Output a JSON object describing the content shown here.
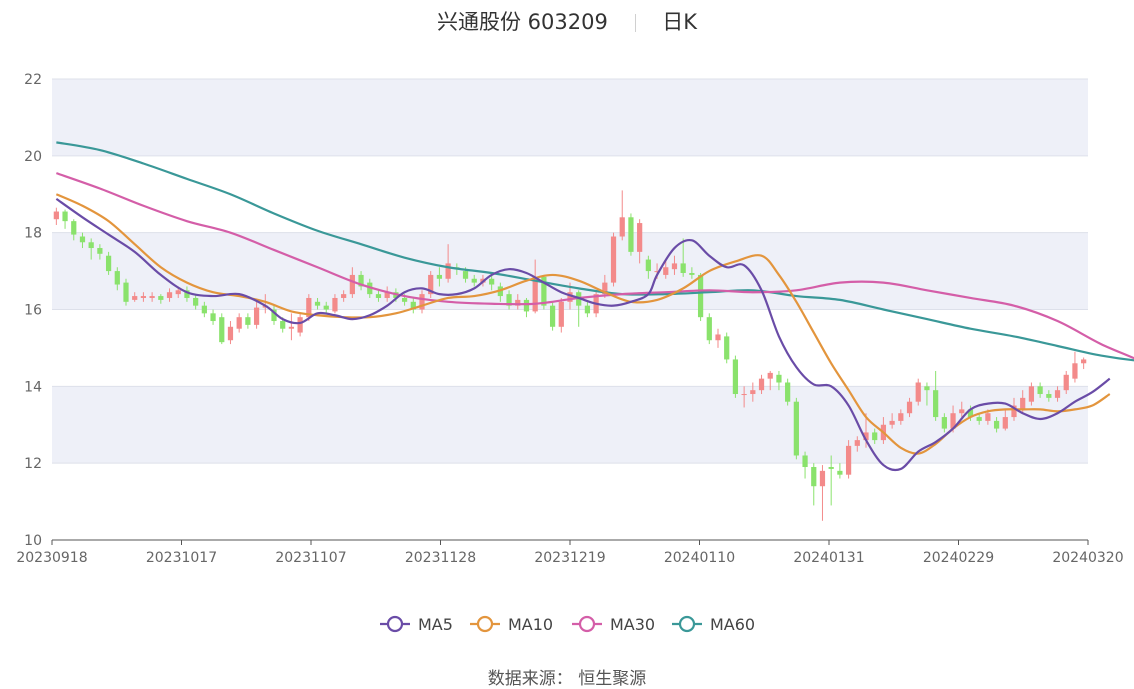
{
  "header": {
    "stock_name": "兴通股份 603209",
    "period": "日K"
  },
  "source": "数据来源： 恒生聚源",
  "colors": {
    "up": "#f38a8a",
    "down": "#8ae26c",
    "ma5": "#6a4ca7",
    "ma10": "#e3953d",
    "ma30": "#d45ea8",
    "ma60": "#3a9898",
    "band": "#eef0f8",
    "grid": "#dde0ea"
  },
  "chart_data": {
    "type": "candlestick",
    "title": "兴通股份 603209 日K",
    "ylim": [
      10,
      22
    ],
    "yticks": [
      10,
      12,
      14,
      16,
      18,
      20,
      22
    ],
    "xticks": [
      "20230918",
      "20231017",
      "20231107",
      "20231128",
      "20231219",
      "20240110",
      "20240131",
      "20240229",
      "20240320"
    ],
    "legend": [
      {
        "key": "ma5",
        "label": "MA5"
      },
      {
        "key": "ma10",
        "label": "MA10"
      },
      {
        "key": "ma30",
        "label": "MA30"
      },
      {
        "key": "ma60",
        "label": "MA60"
      }
    ],
    "candles": [
      [
        18.35,
        18.55,
        18.65,
        18.2
      ],
      [
        18.55,
        18.3,
        18.6,
        18.1
      ],
      [
        18.3,
        17.95,
        18.35,
        17.8
      ],
      [
        17.9,
        17.75,
        18.0,
        17.6
      ],
      [
        17.75,
        17.6,
        17.85,
        17.3
      ],
      [
        17.6,
        17.45,
        17.7,
        17.3
      ],
      [
        17.4,
        17.0,
        17.5,
        16.9
      ],
      [
        17.0,
        16.65,
        17.1,
        16.5
      ],
      [
        16.7,
        16.2,
        16.8,
        16.1
      ],
      [
        16.25,
        16.35,
        16.45,
        16.2
      ],
      [
        16.3,
        16.35,
        16.45,
        16.2
      ],
      [
        16.3,
        16.35,
        16.45,
        16.2
      ],
      [
        16.35,
        16.25,
        16.4,
        16.15
      ],
      [
        16.3,
        16.45,
        16.55,
        16.2
      ],
      [
        16.4,
        16.5,
        16.6,
        16.3
      ],
      [
        16.5,
        16.3,
        16.6,
        16.2
      ],
      [
        16.3,
        16.1,
        16.4,
        16.0
      ],
      [
        16.1,
        15.9,
        16.2,
        15.8
      ],
      [
        15.9,
        15.7,
        16.0,
        15.6
      ],
      [
        15.8,
        15.15,
        15.9,
        15.1
      ],
      [
        15.2,
        15.55,
        15.7,
        15.1
      ],
      [
        15.5,
        15.8,
        15.9,
        15.4
      ],
      [
        15.8,
        15.6,
        15.9,
        15.5
      ],
      [
        15.6,
        16.05,
        16.2,
        15.5
      ],
      [
        16.05,
        16.1,
        16.4,
        15.9
      ],
      [
        16.0,
        15.7,
        16.1,
        15.6
      ],
      [
        15.7,
        15.5,
        15.8,
        15.4
      ],
      [
        15.5,
        15.55,
        15.9,
        15.2
      ],
      [
        15.4,
        15.8,
        15.9,
        15.3
      ],
      [
        15.8,
        16.3,
        16.4,
        15.7
      ],
      [
        16.2,
        16.1,
        16.3,
        16.0
      ],
      [
        16.1,
        16.0,
        16.2,
        15.9
      ],
      [
        15.95,
        16.3,
        16.4,
        15.9
      ],
      [
        16.3,
        16.4,
        16.5,
        16.2
      ],
      [
        16.4,
        16.9,
        17.1,
        16.3
      ],
      [
        16.9,
        16.6,
        17.0,
        16.5
      ],
      [
        16.7,
        16.4,
        16.8,
        16.3
      ],
      [
        16.4,
        16.3,
        16.5,
        16.2
      ],
      [
        16.3,
        16.45,
        16.6,
        16.2
      ],
      [
        16.45,
        16.3,
        16.55,
        16.2
      ],
      [
        16.3,
        16.2,
        16.4,
        16.1
      ],
      [
        16.2,
        16.0,
        16.3,
        15.9
      ],
      [
        16.0,
        16.4,
        16.5,
        15.9
      ],
      [
        16.4,
        16.9,
        17.0,
        16.3
      ],
      [
        16.9,
        16.8,
        17.1,
        16.6
      ],
      [
        16.8,
        17.2,
        17.7,
        16.7
      ],
      [
        17.1,
        17.05,
        17.2,
        16.9
      ],
      [
        17.0,
        16.8,
        17.1,
        16.7
      ],
      [
        16.8,
        16.7,
        16.9,
        16.6
      ],
      [
        16.7,
        16.8,
        16.9,
        16.6
      ],
      [
        16.8,
        16.65,
        16.9,
        16.5
      ],
      [
        16.6,
        16.35,
        16.7,
        16.2
      ],
      [
        16.4,
        16.1,
        16.5,
        16.0
      ],
      [
        16.1,
        16.25,
        16.4,
        16.0
      ],
      [
        16.25,
        15.95,
        16.3,
        15.8
      ],
      [
        15.95,
        16.85,
        17.3,
        15.9
      ],
      [
        16.85,
        16.1,
        16.9,
        16.0
      ],
      [
        16.1,
        15.55,
        16.2,
        15.45
      ],
      [
        15.55,
        16.2,
        16.3,
        15.4
      ],
      [
        16.2,
        16.45,
        16.7,
        16.0
      ],
      [
        16.45,
        16.1,
        16.5,
        15.55
      ],
      [
        16.1,
        15.9,
        16.2,
        15.8
      ],
      [
        15.9,
        16.4,
        16.5,
        15.8
      ],
      [
        16.4,
        16.7,
        16.9,
        16.3
      ],
      [
        16.7,
        17.9,
        18.0,
        16.6
      ],
      [
        17.9,
        18.4,
        19.1,
        17.8
      ],
      [
        18.4,
        17.5,
        18.5,
        17.4
      ],
      [
        17.5,
        18.25,
        18.35,
        17.2
      ],
      [
        17.3,
        17.0,
        17.4,
        16.8
      ],
      [
        17.0,
        17.0,
        17.2,
        16.8
      ],
      [
        16.9,
        17.1,
        17.3,
        16.8
      ],
      [
        17.05,
        17.2,
        17.4,
        16.9
      ],
      [
        17.2,
        16.95,
        17.85,
        16.85
      ],
      [
        16.95,
        16.9,
        17.1,
        16.8
      ],
      [
        16.9,
        15.8,
        16.95,
        15.7
      ],
      [
        15.8,
        15.2,
        15.9,
        15.1
      ],
      [
        15.2,
        15.35,
        15.5,
        15.0
      ],
      [
        15.3,
        14.7,
        15.4,
        14.6
      ],
      [
        14.7,
        13.8,
        14.8,
        13.7
      ],
      [
        13.8,
        13.8,
        14.0,
        13.45
      ],
      [
        13.8,
        13.9,
        14.1,
        13.6
      ],
      [
        13.9,
        14.2,
        14.3,
        13.8
      ],
      [
        14.2,
        14.35,
        14.4,
        13.9
      ],
      [
        14.3,
        14.1,
        14.4,
        13.9
      ],
      [
        14.1,
        13.6,
        14.2,
        13.5
      ],
      [
        13.6,
        12.2,
        13.7,
        12.1
      ],
      [
        12.2,
        11.9,
        12.3,
        11.6
      ],
      [
        11.9,
        11.4,
        12.0,
        10.9
      ],
      [
        11.4,
        11.8,
        11.95,
        10.5
      ],
      [
        11.9,
        11.85,
        12.2,
        10.9
      ],
      [
        11.8,
        11.7,
        12.0,
        11.6
      ],
      [
        11.7,
        12.45,
        12.6,
        11.6
      ],
      [
        12.45,
        12.6,
        12.7,
        12.3
      ],
      [
        12.6,
        12.8,
        13.3,
        12.4
      ],
      [
        12.8,
        12.6,
        12.9,
        12.5
      ],
      [
        12.6,
        13.0,
        13.2,
        12.5
      ],
      [
        13.0,
        13.1,
        13.3,
        12.9
      ],
      [
        13.1,
        13.3,
        13.4,
        13.0
      ],
      [
        13.3,
        13.6,
        13.7,
        13.2
      ],
      [
        13.6,
        14.1,
        14.2,
        13.5
      ],
      [
        14.0,
        13.9,
        14.1,
        13.5
      ],
      [
        13.9,
        13.2,
        14.4,
        13.1
      ],
      [
        13.2,
        12.9,
        13.3,
        12.8
      ],
      [
        12.9,
        13.3,
        13.5,
        12.8
      ],
      [
        13.3,
        13.4,
        13.6,
        13.2
      ],
      [
        13.4,
        13.2,
        13.5,
        13.1
      ],
      [
        13.2,
        13.1,
        13.3,
        13.0
      ],
      [
        13.1,
        13.3,
        13.4,
        13.0
      ],
      [
        13.1,
        12.9,
        13.2,
        12.8
      ],
      [
        12.9,
        13.2,
        13.4,
        12.85
      ],
      [
        13.2,
        13.5,
        13.7,
        13.1
      ],
      [
        13.4,
        13.7,
        13.9,
        13.3
      ],
      [
        13.6,
        14.0,
        14.1,
        13.5
      ],
      [
        14.0,
        13.8,
        14.1,
        13.7
      ],
      [
        13.8,
        13.7,
        13.9,
        13.6
      ],
      [
        13.7,
        13.9,
        14.0,
        13.6
      ],
      [
        13.9,
        14.3,
        14.4,
        13.8
      ],
      [
        14.2,
        14.6,
        14.9,
        14.1
      ],
      [
        14.6,
        14.7,
        14.75,
        14.45
      ]
    ],
    "ma5": [
      [
        0,
        18.88
      ],
      [
        3,
        18.4
      ],
      [
        6,
        17.95
      ],
      [
        9,
        17.5
      ],
      [
        12,
        16.9
      ],
      [
        15,
        16.45
      ],
      [
        18,
        16.35
      ],
      [
        21,
        16.4
      ],
      [
        24,
        16.1
      ],
      [
        26,
        15.75
      ],
      [
        28,
        15.65
      ],
      [
        30,
        15.9
      ],
      [
        32,
        15.85
      ],
      [
        34,
        15.75
      ],
      [
        36,
        15.85
      ],
      [
        38,
        16.1
      ],
      [
        40,
        16.45
      ],
      [
        42,
        16.55
      ],
      [
        44,
        16.4
      ],
      [
        46,
        16.4
      ],
      [
        48,
        16.55
      ],
      [
        50,
        16.9
      ],
      [
        52,
        17.05
      ],
      [
        54,
        16.95
      ],
      [
        56,
        16.7
      ],
      [
        58,
        16.45
      ],
      [
        60,
        16.3
      ],
      [
        62,
        16.15
      ],
      [
        64,
        16.1
      ],
      [
        66,
        16.2
      ],
      [
        68,
        16.4
      ],
      [
        69,
        16.9
      ],
      [
        71,
        17.6
      ],
      [
        73,
        17.8
      ],
      [
        75,
        17.4
      ],
      [
        77,
        17.1
      ],
      [
        79,
        17.15
      ],
      [
        81,
        16.5
      ],
      [
        83,
        15.3
      ],
      [
        85,
        14.5
      ],
      [
        87,
        14.05
      ],
      [
        89,
        14.0
      ],
      [
        91,
        13.5
      ],
      [
        93,
        12.6
      ],
      [
        95,
        11.95
      ],
      [
        97,
        11.85
      ],
      [
        99,
        12.3
      ],
      [
        101,
        12.55
      ],
      [
        103,
        12.9
      ],
      [
        105,
        13.4
      ],
      [
        107,
        13.55
      ],
      [
        109,
        13.55
      ],
      [
        111,
        13.3
      ],
      [
        113,
        13.15
      ],
      [
        115,
        13.3
      ],
      [
        117,
        13.6
      ],
      [
        119,
        13.85
      ],
      [
        121,
        14.2
      ]
    ],
    "ma10": [
      [
        0,
        19.0
      ],
      [
        3,
        18.7
      ],
      [
        6,
        18.3
      ],
      [
        9,
        17.7
      ],
      [
        12,
        17.1
      ],
      [
        15,
        16.7
      ],
      [
        18,
        16.45
      ],
      [
        21,
        16.35
      ],
      [
        24,
        16.2
      ],
      [
        27,
        15.95
      ],
      [
        30,
        15.85
      ],
      [
        33,
        15.8
      ],
      [
        36,
        15.8
      ],
      [
        39,
        15.9
      ],
      [
        42,
        16.1
      ],
      [
        45,
        16.3
      ],
      [
        48,
        16.35
      ],
      [
        51,
        16.5
      ],
      [
        54,
        16.75
      ],
      [
        57,
        16.9
      ],
      [
        60,
        16.75
      ],
      [
        63,
        16.45
      ],
      [
        66,
        16.2
      ],
      [
        69,
        16.25
      ],
      [
        72,
        16.55
      ],
      [
        75,
        17.0
      ],
      [
        78,
        17.25
      ],
      [
        81,
        17.4
      ],
      [
        83,
        16.9
      ],
      [
        85,
        16.2
      ],
      [
        87,
        15.4
      ],
      [
        89,
        14.6
      ],
      [
        91,
        13.9
      ],
      [
        93,
        13.2
      ],
      [
        95,
        12.8
      ],
      [
        97,
        12.4
      ],
      [
        99,
        12.25
      ],
      [
        101,
        12.5
      ],
      [
        103,
        12.9
      ],
      [
        105,
        13.2
      ],
      [
        107,
        13.35
      ],
      [
        109,
        13.4
      ],
      [
        111,
        13.4
      ],
      [
        113,
        13.4
      ],
      [
        115,
        13.35
      ],
      [
        117,
        13.4
      ],
      [
        119,
        13.5
      ],
      [
        121,
        13.8
      ]
    ],
    "ma30": [
      [
        0,
        19.55
      ],
      [
        5,
        19.15
      ],
      [
        10,
        18.7
      ],
      [
        15,
        18.3
      ],
      [
        20,
        18.0
      ],
      [
        25,
        17.55
      ],
      [
        30,
        17.1
      ],
      [
        35,
        16.65
      ],
      [
        40,
        16.35
      ],
      [
        45,
        16.2
      ],
      [
        50,
        16.15
      ],
      [
        55,
        16.15
      ],
      [
        60,
        16.3
      ],
      [
        65,
        16.4
      ],
      [
        70,
        16.45
      ],
      [
        75,
        16.5
      ],
      [
        80,
        16.45
      ],
      [
        85,
        16.5
      ],
      [
        90,
        16.7
      ],
      [
        95,
        16.7
      ],
      [
        100,
        16.5
      ],
      [
        105,
        16.3
      ],
      [
        110,
        16.1
      ],
      [
        115,
        15.7
      ],
      [
        120,
        15.1
      ],
      [
        125,
        14.6
      ],
      [
        128,
        14.1
      ],
      [
        131,
        13.8
      ],
      [
        134,
        13.5
      ],
      [
        137,
        13.2
      ],
      [
        140,
        13.1
      ],
      [
        143,
        13.1
      ],
      [
        146,
        13.1
      ],
      [
        150,
        13.15
      ]
    ],
    "ma60": [
      [
        0,
        20.35
      ],
      [
        5,
        20.15
      ],
      [
        10,
        19.8
      ],
      [
        15,
        19.4
      ],
      [
        20,
        19.0
      ],
      [
        25,
        18.5
      ],
      [
        30,
        18.05
      ],
      [
        35,
        17.7
      ],
      [
        40,
        17.35
      ],
      [
        45,
        17.1
      ],
      [
        50,
        16.95
      ],
      [
        55,
        16.75
      ],
      [
        60,
        16.55
      ],
      [
        65,
        16.4
      ],
      [
        70,
        16.4
      ],
      [
        75,
        16.45
      ],
      [
        80,
        16.5
      ],
      [
        85,
        16.35
      ],
      [
        90,
        16.25
      ],
      [
        95,
        16.0
      ],
      [
        100,
        15.75
      ],
      [
        105,
        15.5
      ],
      [
        110,
        15.3
      ],
      [
        115,
        15.05
      ],
      [
        120,
        14.8
      ],
      [
        125,
        14.65
      ],
      [
        130,
        14.6
      ]
    ]
  }
}
